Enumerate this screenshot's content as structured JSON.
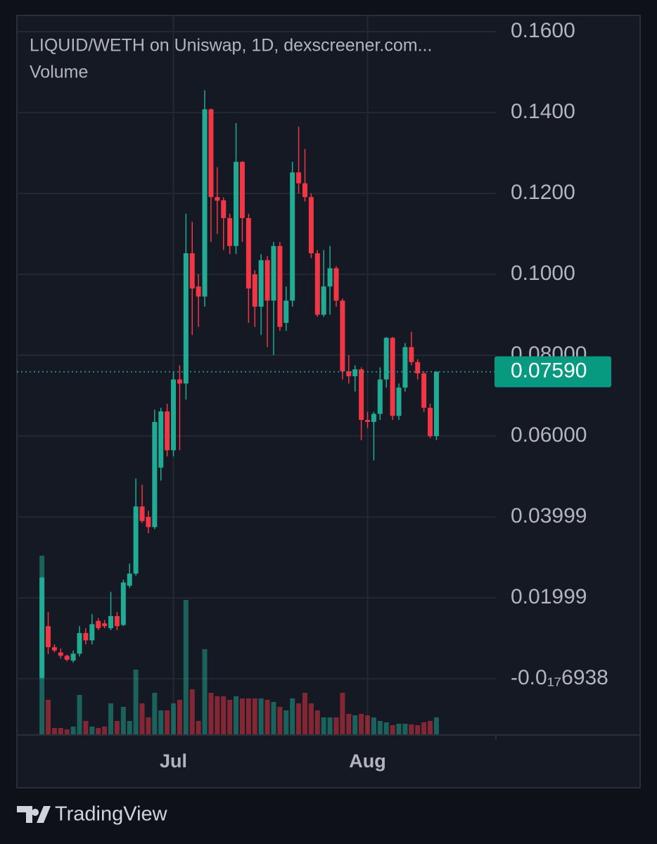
{
  "chart_data": {
    "type": "candlestick",
    "title": "LIQUID/WETH on Uniswap, 1D, dexscreener.com...",
    "subtitle": "Volume",
    "brand": "TradingView",
    "categories": [
      null,
      null,
      null,
      null,
      null,
      null,
      null,
      null,
      null,
      null,
      null,
      null,
      null,
      null,
      null,
      null,
      null,
      null,
      null,
      null,
      null,
      "Jul",
      null,
      null,
      null,
      null,
      null,
      null,
      null,
      null,
      null,
      null,
      null,
      null,
      null,
      null,
      null,
      null,
      null,
      null,
      null,
      null,
      null,
      null,
      null,
      null,
      null,
      null,
      null,
      null,
      null,
      null,
      "Aug",
      null,
      null,
      null,
      null,
      null,
      null,
      null,
      null,
      null,
      null,
      null
    ],
    "open": [
      0.0002,
      0.013,
      0.0078,
      0.0065,
      0.0057,
      0.0045,
      0.0062,
      0.0113,
      0.0095,
      0.0143,
      0.0137,
      0.0125,
      0.0155,
      0.0133,
      0.023,
      0.026,
      0.0426,
      0.04,
      0.0375,
      0.0522,
      0.0661,
      0.0565,
      0.074,
      0.073,
      0.1052,
      0.097,
      0.0945,
      0.1408,
      0.1191,
      0.1183,
      0.1139,
      0.107,
      0.1278,
      0.1139,
      0.1,
      0.092,
      0.1035,
      0.0935,
      0.107,
      0.088,
      0.0935,
      0.1252,
      0.1225,
      0.1191,
      0.1052,
      0.09,
      0.097,
      0.1015,
      0.0935,
      0.076,
      0.0748,
      0.0765,
      0.064,
      0.0635,
      0.0655,
      0.074,
      0.0843,
      0.065,
      0.072,
      0.082,
      0.0783,
      0.0755,
      0.067,
      0.06
    ],
    "high": [
      0.0252,
      0.0165,
      0.0085,
      0.0075,
      0.006,
      0.007,
      0.013,
      0.0125,
      0.016,
      0.015,
      0.0145,
      0.0215,
      0.0165,
      0.0245,
      0.0285,
      0.0495,
      0.048,
      0.0415,
      0.0665,
      0.067,
      0.068,
      0.076,
      0.0775,
      0.115,
      0.113,
      0.1,
      0.1455,
      0.141,
      0.1265,
      0.119,
      0.115,
      0.1374,
      0.128,
      0.115,
      0.101,
      0.105,
      0.1045,
      0.108,
      0.108,
      0.097,
      0.1278,
      0.1365,
      0.131,
      0.12,
      0.106,
      0.106,
      0.107,
      0.102,
      0.094,
      0.08,
      0.0775,
      0.077,
      0.066,
      0.066,
      0.077,
      0.0845,
      0.0845,
      0.073,
      0.083,
      0.0858,
      0.079,
      0.076,
      0.068,
      0.076
    ],
    "low": [
      0.0,
      0.0061,
      0.0065,
      0.005,
      0.0043,
      0.004,
      0.0055,
      0.0085,
      0.0085,
      0.012,
      0.0125,
      0.012,
      0.012,
      0.013,
      0.0225,
      0.0255,
      0.0385,
      0.036,
      0.037,
      0.049,
      0.055,
      0.055,
      0.0565,
      0.069,
      0.085,
      0.087,
      0.092,
      0.108,
      0.11,
      0.106,
      0.105,
      0.105,
      0.108,
      0.088,
      0.087,
      0.085,
      0.082,
      0.08,
      0.086,
      0.086,
      0.092,
      0.12,
      0.118,
      0.104,
      0.0895,
      0.0895,
      0.09,
      0.092,
      0.074,
      0.073,
      0.071,
      0.059,
      0.062,
      0.054,
      0.064,
      0.072,
      0.064,
      0.064,
      0.071,
      0.0775,
      0.074,
      0.066,
      0.0595,
      0.059
    ],
    "close": [
      0.025,
      0.0078,
      0.007,
      0.0057,
      0.0047,
      0.0062,
      0.0113,
      0.0095,
      0.0135,
      0.0125,
      0.013,
      0.0155,
      0.013,
      0.0238,
      0.026,
      0.0426,
      0.039,
      0.0375,
      0.0635,
      0.0661,
      0.0565,
      0.074,
      0.073,
      0.1052,
      0.0965,
      0.0945,
      0.1408,
      0.1191,
      0.1182,
      0.1139,
      0.107,
      0.1278,
      0.1139,
      0.0965,
      0.092,
      0.1035,
      0.0935,
      0.107,
      0.087,
      0.0935,
      0.1252,
      0.1225,
      0.1191,
      0.1052,
      0.09,
      0.097,
      0.1015,
      0.0935,
      0.076,
      0.0748,
      0.0765,
      0.064,
      0.0635,
      0.0655,
      0.074,
      0.0843,
      0.065,
      0.072,
      0.082,
      0.0783,
      0.0755,
      0.067,
      0.06,
      0.0759
    ],
    "volume": [
      255,
      50,
      10,
      10,
      8,
      12,
      57,
      20,
      12,
      10,
      12,
      45,
      20,
      40,
      20,
      93,
      45,
      25,
      60,
      35,
      35,
      45,
      50,
      192,
      65,
      20,
      122,
      60,
      55,
      55,
      50,
      55,
      52,
      52,
      52,
      52,
      50,
      47,
      40,
      35,
      52,
      45,
      60,
      45,
      35,
      25,
      25,
      25,
      60,
      30,
      28,
      30,
      28,
      25,
      20,
      18,
      14,
      16,
      16,
      15,
      14,
      18,
      20,
      25
    ],
    "up_color": "#22ab94",
    "down_color": "#f23645",
    "xlim": [
      -4,
      72.5
    ],
    "ylim": [
      -0.0139,
      0.164
    ],
    "yticks": [
      {
        "value": 0.16,
        "label": "0.1600"
      },
      {
        "value": 0.14,
        "label": "0.1400"
      },
      {
        "value": 0.12,
        "label": "0.1200"
      },
      {
        "value": 0.1,
        "label": "0.1000"
      },
      {
        "value": 0.08,
        "label": "0.08000"
      },
      {
        "value": 0.06,
        "label": "0.06000"
      },
      0.03999,
      0.01999,
      {
        "value": -6.938e-18,
        "label": "-0.0₁₇6938"
      }
    ],
    "last_price": {
      "value": 0.0759,
      "label": "0.07590"
    },
    "grid": true
  }
}
